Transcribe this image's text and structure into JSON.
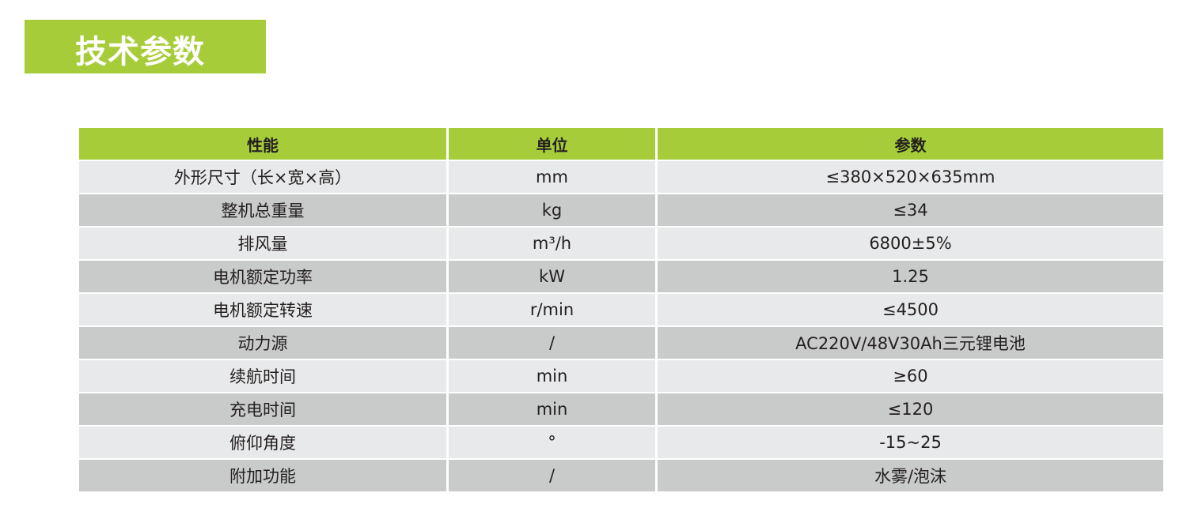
{
  "title": "技术参数",
  "colors": {
    "accent": "#a6cd39",
    "row_light": "#e8e9ea",
    "row_dark": "#c9caca"
  },
  "table": {
    "headers": [
      "性能",
      "单位",
      "参数"
    ],
    "rows": [
      [
        "外形尺寸（长×宽×高）",
        "mm",
        "≤380×520×635mm"
      ],
      [
        "整机总重量",
        "kg",
        "≤34"
      ],
      [
        "排风量",
        "m³/h",
        "6800±5%"
      ],
      [
        "电机额定功率",
        "kW",
        "1.25"
      ],
      [
        "电机额定转速",
        "r/min",
        "≤4500"
      ],
      [
        "动力源",
        "/",
        "AC220V/48V30Ah三元锂电池"
      ],
      [
        "续航时间",
        "min",
        "≥60"
      ],
      [
        "充电时间",
        "min",
        "≤120"
      ],
      [
        "俯仰角度",
        "°",
        "-15~25"
      ],
      [
        "附加功能",
        "/",
        "水雾/泡沫"
      ]
    ]
  }
}
